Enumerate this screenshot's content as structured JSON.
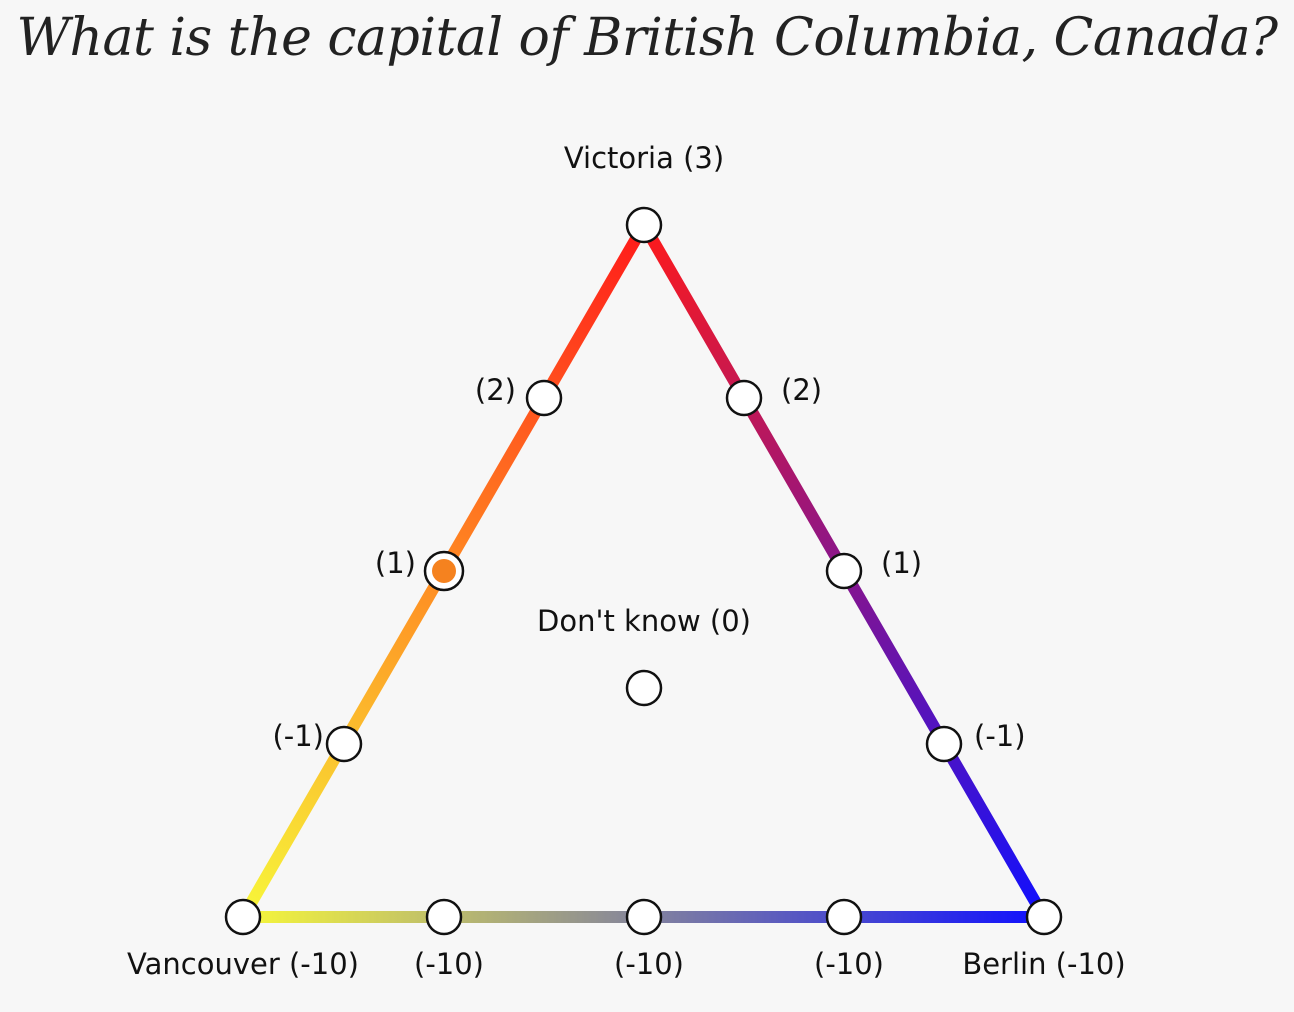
{
  "question": "What is the capital of British Columbia, Canada?",
  "colors": {
    "victoria": "#ff1a1a",
    "vancouver": "#f7f73a",
    "berlin": "#1010ff",
    "selected_fill": "#f5821f",
    "background": "#f7f7f7"
  },
  "labels": {
    "victoria": "Victoria (3)",
    "vancouver": "Vancouver (-10)",
    "berlin": "Berlin (-10)",
    "dont_know": "Don't know (0)",
    "left_2": "(2)",
    "left_1": "(1)",
    "left_m1": "(-1)",
    "right_2": "(2)",
    "right_1": "(1)",
    "right_m1": "(-1)",
    "bottom_1": "(-10)",
    "bottom_2": "(-10)",
    "bottom_3": "(-10)"
  },
  "selected": "left_1"
}
